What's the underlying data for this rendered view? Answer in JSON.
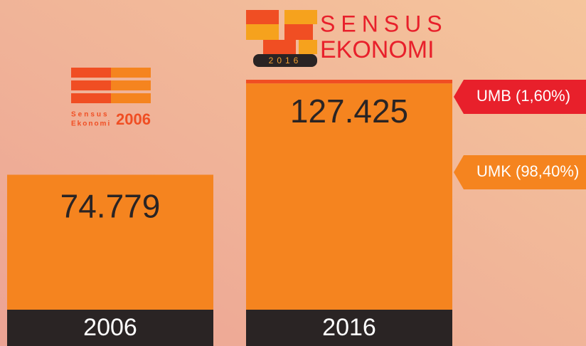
{
  "chart_data": {
    "type": "bar",
    "categories": [
      "2006",
      "2016"
    ],
    "values": [
      74779,
      127425
    ],
    "value_labels": [
      "74.779",
      "127.425"
    ],
    "color": "#f5841f",
    "segments": [
      {
        "label": "UMK (98,40%)",
        "share": 98.4,
        "color": "#f5841f"
      },
      {
        "label": "UMB (1,60%)",
        "share": 1.6,
        "color": "#f04e23"
      }
    ]
  },
  "logos": {
    "se2016": {
      "line1": "SENSUS",
      "line2": "EKONOMI",
      "year": "2016"
    },
    "se2006": {
      "line1": "Sensus",
      "line2": "Ekonomi",
      "year": "2006"
    }
  }
}
